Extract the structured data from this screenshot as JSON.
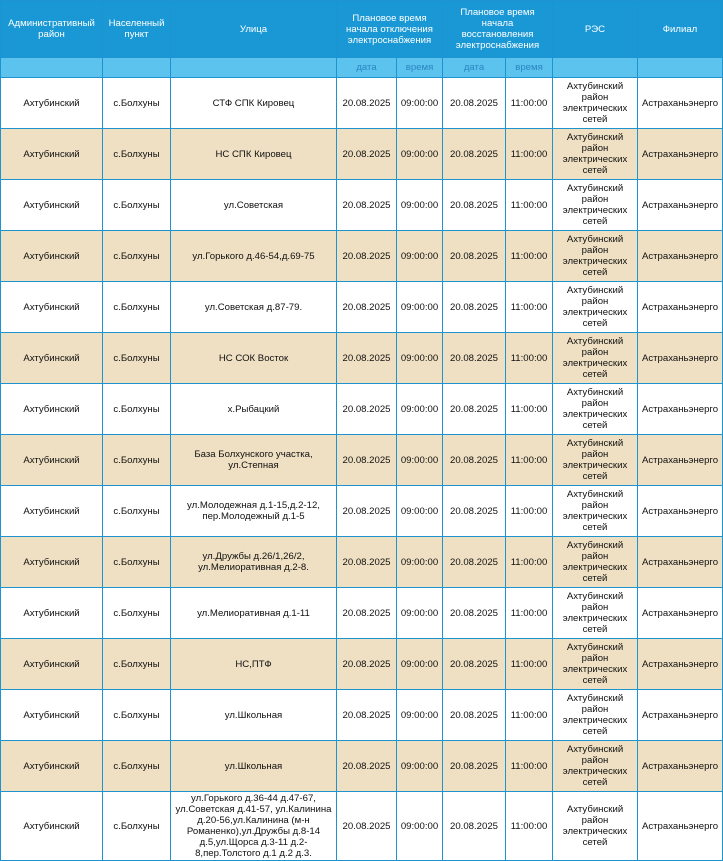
{
  "headers": {
    "district": "Административный район",
    "locality": "Населенный пункт",
    "street": "Улица",
    "off": "Плановое время начала отключения электроснабжения",
    "on": "Плановое время начала восстановления электроснабжения",
    "res": "РЭС",
    "branch": "Филиал"
  },
  "subheaders": {
    "date": "дата",
    "time": "время"
  },
  "colors": {
    "header": "#1a98d5",
    "subheader": "#5cc3ee",
    "alt_row": "#efe0c3"
  },
  "rows": [
    {
      "district": "Ахтубинский",
      "locality": "с.Болхуны",
      "street": "СТФ СПК Кировец",
      "off_date": "20.08.2025",
      "off_time": "09:00:00",
      "on_date": "20.08.2025",
      "on_time": "11:00:00",
      "res": "Ахтубинский район электрических сетей",
      "branch": "Астраханьэнерго"
    },
    {
      "district": "Ахтубинский",
      "locality": "с.Болхуны",
      "street": "НС СПК Кировец",
      "off_date": "20.08.2025",
      "off_time": "09:00:00",
      "on_date": "20.08.2025",
      "on_time": "11:00:00",
      "res": "Ахтубинский район электрических сетей",
      "branch": "Астраханьэнерго"
    },
    {
      "district": "Ахтубинский",
      "locality": "с.Болхуны",
      "street": "ул.Советская",
      "off_date": "20.08.2025",
      "off_time": "09:00:00",
      "on_date": "20.08.2025",
      "on_time": "11:00:00",
      "res": "Ахтубинский район электрических сетей",
      "branch": "Астраханьэнерго"
    },
    {
      "district": "Ахтубинский",
      "locality": "с.Болхуны",
      "street": "ул.Горького д.46-54,д.69-75",
      "off_date": "20.08.2025",
      "off_time": "09:00:00",
      "on_date": "20.08.2025",
      "on_time": "11:00:00",
      "res": "Ахтубинский район электрических сетей",
      "branch": "Астраханьэнерго"
    },
    {
      "district": "Ахтубинский",
      "locality": "с.Болхуны",
      "street": "ул.Советская д.87-79.",
      "off_date": "20.08.2025",
      "off_time": "09:00:00",
      "on_date": "20.08.2025",
      "on_time": "11:00:00",
      "res": "Ахтубинский район электрических сетей",
      "branch": "Астраханьэнерго"
    },
    {
      "district": "Ахтубинский",
      "locality": "с.Болхуны",
      "street": "НС СОК Восток",
      "off_date": "20.08.2025",
      "off_time": "09:00:00",
      "on_date": "20.08.2025",
      "on_time": "11:00:00",
      "res": "Ахтубинский район электрических сетей",
      "branch": "Астраханьэнерго"
    },
    {
      "district": "Ахтубинский",
      "locality": "с.Болхуны",
      "street": "х.Рыбацкий",
      "off_date": "20.08.2025",
      "off_time": "09:00:00",
      "on_date": "20.08.2025",
      "on_time": "11:00:00",
      "res": "Ахтубинский район электрических сетей",
      "branch": "Астраханьэнерго"
    },
    {
      "district": "Ахтубинский",
      "locality": "с.Болхуны",
      "street": "База Болхунского участка, ул.Степная",
      "off_date": "20.08.2025",
      "off_time": "09:00:00",
      "on_date": "20.08.2025",
      "on_time": "11:00:00",
      "res": "Ахтубинский район электрических сетей",
      "branch": "Астраханьэнерго"
    },
    {
      "district": "Ахтубинский",
      "locality": "с.Болхуны",
      "street": "ул.Молодежная д.1-15,д.2-12, пер.Молодежный д.1-5",
      "off_date": "20.08.2025",
      "off_time": "09:00:00",
      "on_date": "20.08.2025",
      "on_time": "11:00:00",
      "res": "Ахтубинский район электрических сетей",
      "branch": "Астраханьэнерго"
    },
    {
      "district": "Ахтубинский",
      "locality": "с.Болхуны",
      "street": "ул.Дружбы д.26/1,26/2, ул.Мелиоративная д.2-8.",
      "off_date": "20.08.2025",
      "off_time": "09:00:00",
      "on_date": "20.08.2025",
      "on_time": "11:00:00",
      "res": "Ахтубинский район электрических сетей",
      "branch": "Астраханьэнерго"
    },
    {
      "district": "Ахтубинский",
      "locality": "с.Болхуны",
      "street": "ул.Мелиоративная д.1-11",
      "off_date": "20.08.2025",
      "off_time": "09:00:00",
      "on_date": "20.08.2025",
      "on_time": "11:00:00",
      "res": "Ахтубинский район электрических сетей",
      "branch": "Астраханьэнерго"
    },
    {
      "district": "Ахтубинский",
      "locality": "с.Болхуны",
      "street": "НС,ПТФ",
      "off_date": "20.08.2025",
      "off_time": "09:00:00",
      "on_date": "20.08.2025",
      "on_time": "11:00:00",
      "res": "Ахтубинский район электрических сетей",
      "branch": "Астраханьэнерго"
    },
    {
      "district": "Ахтубинский",
      "locality": "с.Болхуны",
      "street": "ул.Школьная",
      "off_date": "20.08.2025",
      "off_time": "09:00:00",
      "on_date": "20.08.2025",
      "on_time": "11:00:00",
      "res": "Ахтубинский район электрических сетей",
      "branch": "Астраханьэнерго"
    },
    {
      "district": "Ахтубинский",
      "locality": "с.Болхуны",
      "street": "ул.Школьная",
      "off_date": "20.08.2025",
      "off_time": "09:00:00",
      "on_date": "20.08.2025",
      "on_time": "11:00:00",
      "res": "Ахтубинский район электрических сетей",
      "branch": "Астраханьэнерго"
    },
    {
      "district": "Ахтубинский",
      "locality": "с.Болхуны",
      "street": "ул.Горького д.36-44 д.47-67, ул.Советская д.41-57, ул.Калинина д.20-56,ул.Калинина (м-н Романенко),ул.Дружбы д.8-14 д.5,ул.Щорса д.3-11 д.2-8,пер.Толстого д.1 д.2 д.3.",
      "off_date": "20.08.2025",
      "off_time": "09:00:00",
      "on_date": "20.08.2025",
      "on_time": "11:00:00",
      "res": "Ахтубинский район электрических сетей",
      "branch": "Астраханьэнерго"
    }
  ]
}
